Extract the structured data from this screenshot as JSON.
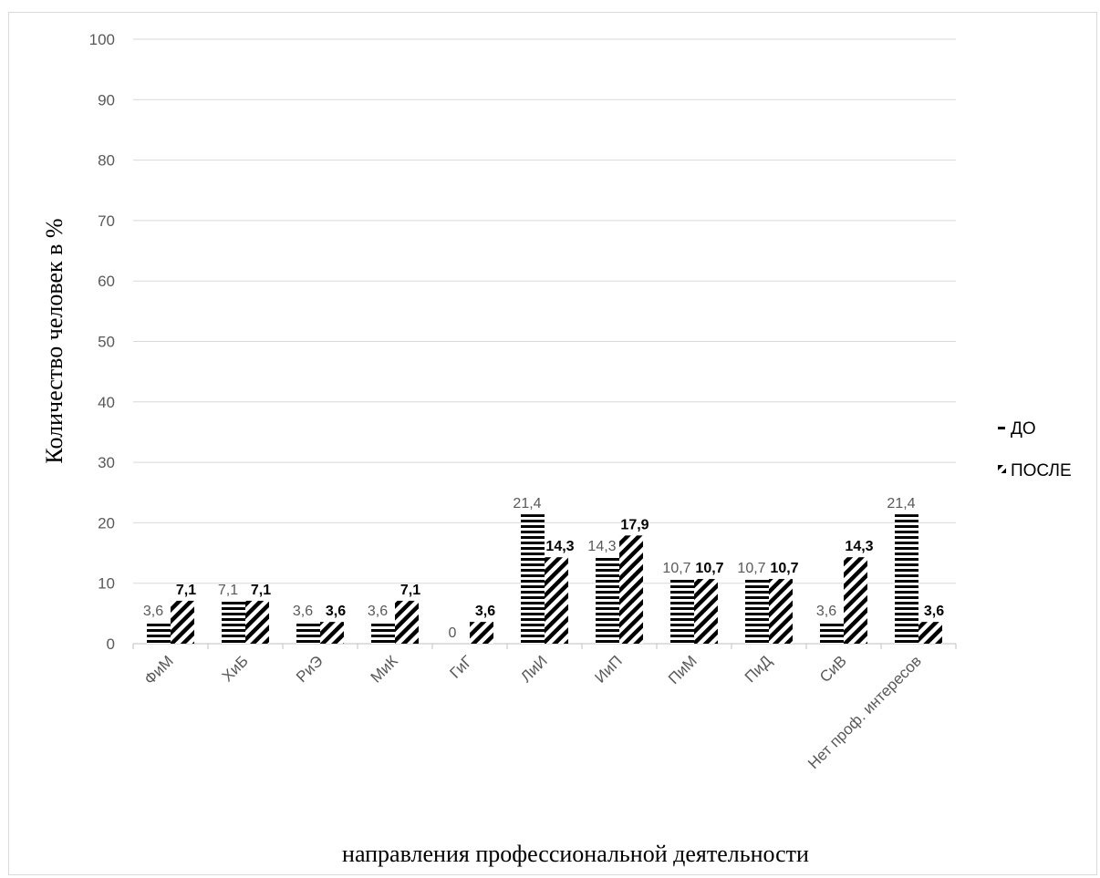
{
  "chart_data": {
    "type": "bar",
    "title": "",
    "xlabel": "направления профессиональной деятельности",
    "ylabel": "Количество человек в %",
    "ylim": [
      0,
      100
    ],
    "yticks": [
      "0",
      "10",
      "20",
      "30",
      "40",
      "50",
      "60",
      "70",
      "80",
      "90",
      "100"
    ],
    "grid": true,
    "legend_position": "right",
    "categories": [
      "ФиМ",
      "ХиБ",
      "РиЭ",
      "МиК",
      "ГиГ",
      "ЛиИ",
      "ИиП",
      "ПиМ",
      "ПиД",
      "СиВ",
      "Нет проф. интересов"
    ],
    "series": [
      {
        "name": "ДО",
        "pattern": "horizontal-stripes",
        "values": [
          3.6,
          7.1,
          3.6,
          3.6,
          0,
          21.4,
          14.3,
          10.7,
          10.7,
          3.6,
          21.4
        ],
        "labels": [
          "3,6",
          "7,1",
          "3,6",
          "3,6",
          "0",
          "21,4",
          "14,3",
          "10,7",
          "10,7",
          "3,6",
          "21,4"
        ]
      },
      {
        "name": "ПОСЛЕ",
        "pattern": "diagonal-stripes",
        "values": [
          7.1,
          7.1,
          3.6,
          7.1,
          3.6,
          14.3,
          17.9,
          10.7,
          10.7,
          14.3,
          3.6
        ],
        "labels": [
          "7,1",
          "7,1",
          "3,6",
          "7,1",
          "3,6",
          "14,3",
          "17,9",
          "10,7",
          "10,7",
          "14,3",
          "3,6"
        ]
      }
    ],
    "colors": {
      "bars": "#000000",
      "grid": "#d9d9d9",
      "tick_text": "#595959"
    }
  }
}
